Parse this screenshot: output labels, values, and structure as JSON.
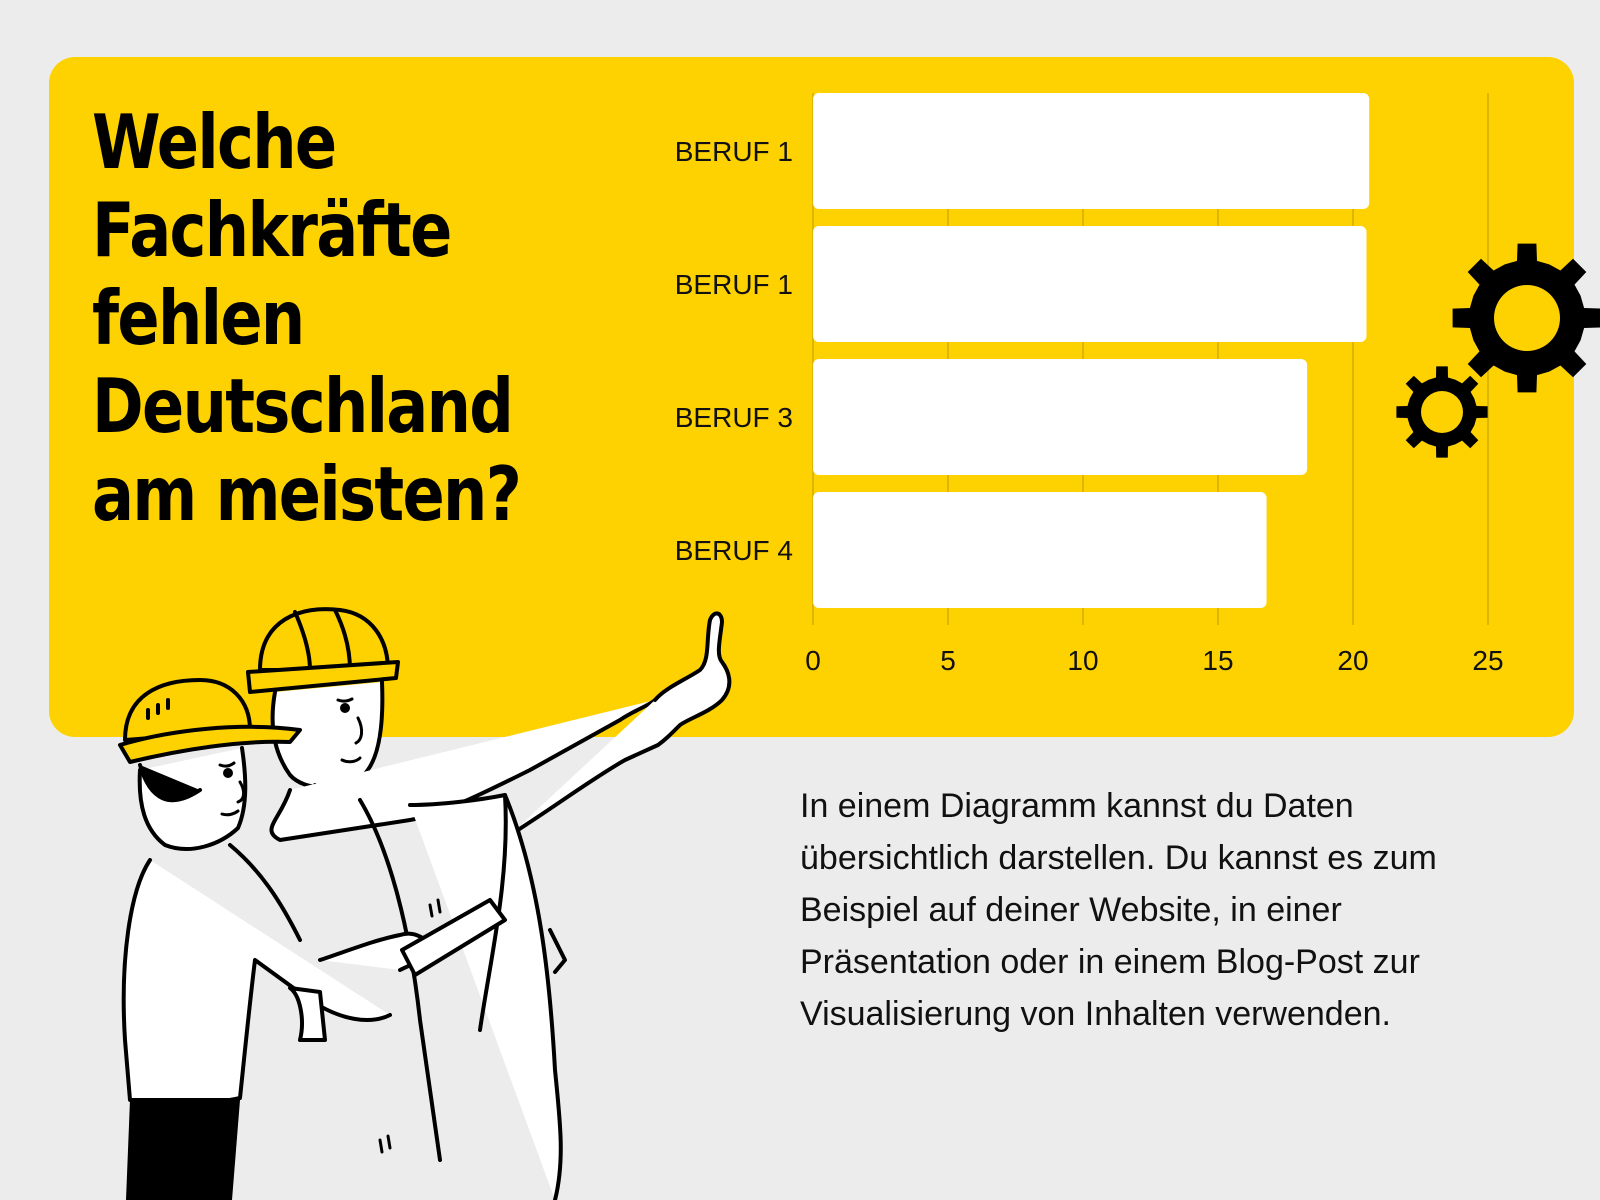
{
  "headline": {
    "lines": [
      "Welche",
      "Fachkräfte",
      "fehlen",
      "Deutschland",
      "am meisten?"
    ]
  },
  "chart_data": {
    "type": "bar",
    "orientation": "horizontal",
    "categories": [
      "BERUF 1",
      "BERUF 1",
      "BERUF 3",
      "BERUF 4"
    ],
    "values": [
      20.6,
      20.5,
      18.3,
      16.8
    ],
    "xlim": [
      0,
      25
    ],
    "xticks": [
      0,
      5,
      10,
      15,
      20,
      25
    ],
    "grid": true,
    "bar_color": "#ffffff",
    "background_color": "#fed100",
    "gridline_color": "#c9a400"
  },
  "body_text": "In einem Diagramm kannst du Daten übersichtlich darstellen. Du kannst es zum Beispiel auf deiner Website, in einer Präsentation oder in einem Blog-Post zur Visualisierung von Inhalten verwenden.",
  "colors": {
    "accent": "#fed100",
    "page_background": "#ececec",
    "text": "#111111"
  },
  "icons": [
    "gear-icon",
    "workers-illustration"
  ]
}
